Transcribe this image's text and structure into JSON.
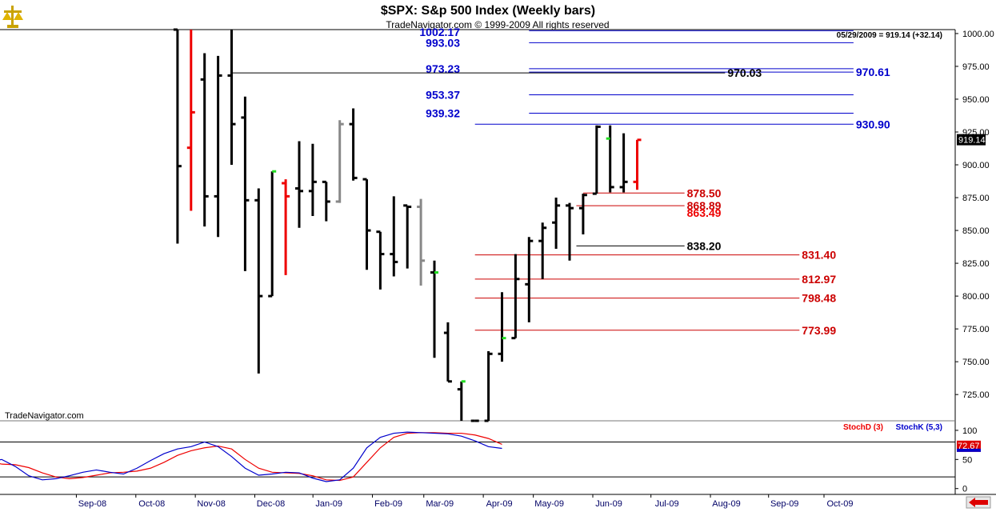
{
  "header": {
    "title": "$SPX:  S&p 500 Index  (Weekly bars)",
    "subtitle": "TradeNavigator.com © 1999-2009 All rights reserved",
    "quote": "05/29/2009 = 919.14 (+32.14)",
    "watermark": "TradeNavigator.com",
    "logo_icon": "scales-logo-icon",
    "arrow_icon": "left-arrow-icon"
  },
  "chart_data": [
    {
      "type": "bar",
      "subtype": "ohlc-weekly",
      "ylim": [
        705,
        1003
      ],
      "y_ticks": [
        "1000.00",
        "975.00",
        "950.00",
        "925.00",
        "900.00",
        "875.00",
        "850.00",
        "825.00",
        "800.00",
        "775.00",
        "750.00",
        "725.00"
      ],
      "last_price": "919.14",
      "x_ticks": [
        "Sep-08",
        "Oct-08",
        "Nov-08",
        "Dec-08",
        "Jan-09",
        "Feb-09",
        "Mar-09",
        "Apr-09",
        "May-09",
        "Jun-09",
        "Jul-09",
        "Aug-09",
        "Sep-09",
        "Oct-09"
      ],
      "x_tick_weeks": [
        4.7,
        9.1,
        13.5,
        17.9,
        22.2,
        26.6,
        30.4,
        34.8,
        38.5,
        42.9,
        47.2,
        51.6,
        55.9,
        60.0
      ],
      "colors": {
        "up": "#000000",
        "down_red": "#ee0000",
        "inside_gray": "#888888",
        "green_tick": "#22dd22"
      },
      "bars": [
        {
          "w": 11,
          "h": 1003,
          "l": 840,
          "o": 1003,
          "c": 899,
          "color": "black"
        },
        {
          "w": 12,
          "h": 1003,
          "l": 865,
          "o": 913,
          "c": 940,
          "color": "red"
        },
        {
          "w": 13,
          "h": 985,
          "l": 853,
          "o": 965,
          "c": 876,
          "color": "black"
        },
        {
          "w": 14,
          "h": 983,
          "l": 845,
          "o": 876,
          "c": 968,
          "color": "black"
        },
        {
          "w": 15,
          "h": 1003,
          "l": 900,
          "o": 968,
          "c": 931,
          "color": "black"
        },
        {
          "w": 16,
          "h": 952,
          "l": 819,
          "o": 936,
          "c": 873,
          "color": "black"
        },
        {
          "w": 17,
          "h": 882,
          "l": 741,
          "o": 873,
          "c": 800,
          "color": "black"
        },
        {
          "w": 18,
          "h": 895,
          "l": 800,
          "o": 800,
          "c": 895,
          "color": "black",
          "close_color": "green"
        },
        {
          "w": 19,
          "h": 889,
          "l": 816,
          "o": 886,
          "c": 876,
          "color": "red"
        },
        {
          "w": 20,
          "h": 918,
          "l": 852,
          "o": 882,
          "c": 880,
          "color": "black"
        },
        {
          "w": 21,
          "h": 916,
          "l": 861,
          "o": 880,
          "c": 887,
          "color": "black"
        },
        {
          "w": 22,
          "h": 887,
          "l": 857,
          "o": 887,
          "c": 872,
          "color": "black"
        },
        {
          "w": 23,
          "h": 934,
          "l": 871,
          "o": 872,
          "c": 931,
          "color": "gray"
        },
        {
          "w": 24,
          "h": 943,
          "l": 888,
          "o": 931,
          "c": 890,
          "color": "black"
        },
        {
          "w": 25,
          "h": 889,
          "l": 820,
          "o": 889,
          "c": 850,
          "color": "black"
        },
        {
          "w": 26,
          "h": 849,
          "l": 805,
          "o": 849,
          "c": 832,
          "color": "black"
        },
        {
          "w": 27,
          "h": 876,
          "l": 815,
          "o": 832,
          "c": 826,
          "color": "black"
        },
        {
          "w": 28,
          "h": 869,
          "l": 821,
          "o": 869,
          "c": 868,
          "color": "black"
        },
        {
          "w": 29,
          "h": 874,
          "l": 808,
          "o": 868,
          "c": 827,
          "color": "gray"
        },
        {
          "w": 30,
          "h": 827,
          "l": 753,
          "o": 818,
          "c": 818,
          "color": "black",
          "close_color": "green"
        },
        {
          "w": 31,
          "h": 780,
          "l": 735,
          "o": 772,
          "c": 735,
          "color": "black"
        },
        {
          "w": 32,
          "h": 735,
          "l": 705,
          "o": 729,
          "c": 735,
          "color": "black",
          "close_color": "green"
        },
        {
          "w": 33,
          "h": 705,
          "l": 705,
          "o": 705,
          "c": 705,
          "color": "black"
        },
        {
          "w": 34,
          "h": 758,
          "l": 705,
          "o": 705,
          "c": 756,
          "color": "black"
        },
        {
          "w": 35,
          "h": 803,
          "l": 750,
          "o": 756,
          "c": 768,
          "color": "black",
          "close_color": "green"
        },
        {
          "w": 36,
          "h": 832,
          "l": 768,
          "o": 768,
          "c": 813,
          "color": "black"
        },
        {
          "w": 37,
          "h": 845,
          "l": 780,
          "o": 809,
          "c": 842,
          "color": "black"
        },
        {
          "w": 38,
          "h": 856,
          "l": 813,
          "o": 842,
          "c": 852,
          "color": "black"
        },
        {
          "w": 39,
          "h": 875,
          "l": 836,
          "o": 856,
          "c": 869,
          "color": "black"
        },
        {
          "w": 40,
          "h": 871,
          "l": 827,
          "o": 869,
          "c": 867,
          "color": "black"
        },
        {
          "w": 41,
          "h": 878,
          "l": 847,
          "o": 867,
          "c": 877,
          "color": "black"
        },
        {
          "w": 42,
          "h": 930,
          "l": 878,
          "o": 878,
          "c": 929,
          "color": "black"
        },
        {
          "w": 43,
          "h": 930,
          "l": 879,
          "o": 920,
          "c": 883,
          "color": "black",
          "open_color": "green"
        },
        {
          "w": 44,
          "h": 924,
          "l": 879,
          "o": 883,
          "c": 887,
          "color": "black"
        },
        {
          "w": 45,
          "h": 919,
          "l": 881,
          "o": 887,
          "c": 919,
          "color": "red"
        }
      ],
      "levels": [
        {
          "value": 1002.17,
          "label": "1002.17",
          "color": "#0000cc",
          "x0": 37,
          "x1": 61,
          "label_side": "left"
        },
        {
          "value": 993.03,
          "label": "993.03",
          "color": "#0000cc",
          "x0": 37,
          "x1": 61,
          "label_side": "left"
        },
        {
          "value": 973.23,
          "label": "973.23",
          "color": "#0000cc",
          "x0": 37,
          "x1": 61,
          "label_side": "left"
        },
        {
          "value": 953.37,
          "label": "953.37",
          "color": "#0000cc",
          "x0": 37,
          "x1": 61,
          "label_side": "left"
        },
        {
          "value": 939.32,
          "label": "939.32",
          "color": "#0000cc",
          "x0": 37,
          "x1": 61,
          "label_side": "left"
        },
        {
          "value": 970.61,
          "label": "970.61",
          "color": "#0000cc",
          "x0": 37,
          "x1": 61,
          "label_side": "right"
        },
        {
          "value": 930.9,
          "label": "930.90",
          "color": "#0000cc",
          "x0": 33,
          "x1": 61,
          "label_side": "right"
        },
        {
          "value": 970.03,
          "label": "970.03",
          "color": "#000000",
          "x0": 15,
          "x1": 51.5,
          "label_side": "right"
        },
        {
          "value": 878.5,
          "label": "878.50",
          "color": "#cc0000",
          "x0": 41,
          "x1": 48.5,
          "label_side": "right"
        },
        {
          "value": 868.89,
          "label": "868.89",
          "color": "#cc0000",
          "x0": 40.5,
          "x1": 48.5,
          "label_side": "right"
        },
        {
          "value": 863.49,
          "label": "863.49",
          "color": "#ee0000",
          "x0": null,
          "x1": 48.5,
          "label_side": "right"
        },
        {
          "value": 838.2,
          "label": "838.20",
          "color": "#000000",
          "x0": 40.5,
          "x1": 48.5,
          "label_side": "right"
        },
        {
          "value": 831.4,
          "label": "831.40",
          "color": "#cc0000",
          "x0": 33,
          "x1": 57,
          "label_side": "right"
        },
        {
          "value": 812.97,
          "label": "812.97",
          "color": "#cc0000",
          "x0": 33,
          "x1": 57,
          "label_side": "right"
        },
        {
          "value": 798.48,
          "label": "798.48",
          "color": "#cc0000",
          "x0": 33,
          "x1": 57,
          "label_side": "right"
        },
        {
          "value": 773.99,
          "label": "773.99",
          "color": "#cc0000",
          "x0": 33,
          "x1": 57,
          "label_side": "right"
        }
      ]
    },
    {
      "type": "line",
      "indicator": "stochastic",
      "ylim": [
        -10,
        115
      ],
      "y_ticks": [
        "100",
        "50",
        "0"
      ],
      "ref_lines": [
        80,
        20
      ],
      "last_value": "72.67",
      "series": [
        {
          "name": "StochD (3)",
          "color": "#ee0000",
          "x": [
            0,
            1,
            2,
            3,
            4,
            5,
            6,
            7,
            8,
            9,
            10,
            11,
            12,
            13,
            14,
            15,
            16,
            17,
            18,
            19,
            20,
            21,
            22,
            23,
            24,
            25,
            26,
            27,
            28,
            29,
            30,
            31,
            32,
            33,
            34,
            35,
            36,
            37,
            38,
            39,
            40,
            41,
            42,
            43,
            44,
            45
          ],
          "values": [
            25,
            45,
            65,
            80,
            84,
            76,
            62,
            48,
            42,
            41,
            36,
            27,
            20,
            17,
            19,
            23,
            27,
            28,
            30,
            35,
            45,
            57,
            65,
            70,
            73,
            68,
            50,
            35,
            28,
            27,
            26,
            22,
            15,
            14,
            20,
            45,
            70,
            88,
            95,
            96,
            96,
            95,
            95,
            92,
            86,
            76
          ]
        },
        {
          "name": "StochK (5,3)",
          "color": "#0000cc",
          "x": [
            0,
            1,
            2,
            3,
            4,
            5,
            6,
            7,
            8,
            9,
            10,
            11,
            12,
            13,
            14,
            15,
            16,
            17,
            18,
            19,
            20,
            21,
            22,
            23,
            24,
            25,
            26,
            27,
            28,
            29,
            30,
            31,
            32,
            33,
            34,
            35,
            36,
            37,
            38,
            39,
            40,
            41,
            42,
            43,
            44,
            45
          ],
          "values": [
            45,
            70,
            85,
            90,
            78,
            55,
            42,
            45,
            50,
            38,
            22,
            15,
            17,
            22,
            28,
            32,
            28,
            25,
            35,
            48,
            60,
            68,
            72,
            80,
            72,
            55,
            35,
            23,
            25,
            28,
            27,
            18,
            12,
            15,
            35,
            70,
            88,
            95,
            97,
            96,
            95,
            94,
            90,
            82,
            72,
            69
          ]
        }
      ]
    }
  ]
}
